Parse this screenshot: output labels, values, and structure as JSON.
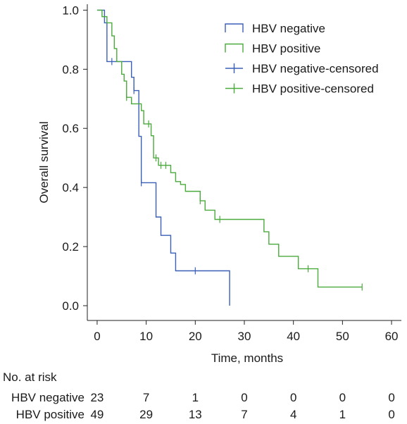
{
  "chart_data": {
    "type": "line",
    "step": true,
    "xlabel": "Time, months",
    "ylabel": "Overall survival",
    "xlim": [
      -2,
      62
    ],
    "ylim": [
      -0.05,
      1.02
    ],
    "x_ticks": [
      "0",
      "10",
      "20",
      "30",
      "40",
      "50",
      "60"
    ],
    "y_ticks": [
      "0.0",
      "0.2",
      "0.4",
      "0.6",
      "0.8",
      "1.0"
    ],
    "legend_position": "top-right",
    "legend": [
      "HBV negative",
      "HBV positive",
      "HBV negative-censored",
      "HBV positive-censored"
    ],
    "series": [
      {
        "name": "HBV negative",
        "color": "#3a5fb7",
        "points": [
          [
            0,
            1.0
          ],
          [
            1.5,
            0.957
          ],
          [
            2,
            0.826
          ],
          [
            7,
            0.773
          ],
          [
            7.5,
            0.728
          ],
          [
            8.5,
            0.573
          ],
          [
            9,
            0.416
          ],
          [
            12,
            0.3
          ],
          [
            13,
            0.238
          ],
          [
            15,
            0.178
          ],
          [
            16,
            0.118
          ],
          [
            27,
            0.0
          ]
        ],
        "end": 27,
        "censored": [
          [
            3,
            0.826
          ],
          [
            7.5,
            0.728
          ],
          [
            9,
            0.416
          ],
          [
            20,
            0.118
          ]
        ]
      },
      {
        "name": "HBV positive",
        "color": "#4aaa3c",
        "points": [
          [
            0,
            1.0
          ],
          [
            1,
            0.978
          ],
          [
            2,
            0.957
          ],
          [
            3,
            0.913
          ],
          [
            3.5,
            0.87
          ],
          [
            4,
            0.826
          ],
          [
            5,
            0.783
          ],
          [
            5.5,
            0.76
          ],
          [
            6,
            0.705
          ],
          [
            7,
            0.683
          ],
          [
            9,
            0.66
          ],
          [
            9.5,
            0.615
          ],
          [
            11,
            0.575
          ],
          [
            11.5,
            0.5
          ],
          [
            12.5,
            0.475
          ],
          [
            15,
            0.45
          ],
          [
            16,
            0.42
          ],
          [
            17,
            0.41
          ],
          [
            18,
            0.387
          ],
          [
            21,
            0.355
          ],
          [
            22,
            0.323
          ],
          [
            24,
            0.292
          ],
          [
            34,
            0.25
          ],
          [
            35,
            0.208
          ],
          [
            37,
            0.167
          ],
          [
            41,
            0.125
          ],
          [
            45,
            0.063
          ]
        ],
        "end": 54,
        "censored": [
          [
            6,
            0.705
          ],
          [
            10.5,
            0.615
          ],
          [
            12,
            0.5
          ],
          [
            13,
            0.475
          ],
          [
            14,
            0.475
          ],
          [
            21,
            0.355
          ],
          [
            25,
            0.292
          ],
          [
            43,
            0.125
          ],
          [
            54,
            0.063
          ]
        ]
      }
    ],
    "at_risk": {
      "title": "No. at risk",
      "times": [
        0,
        10,
        20,
        30,
        40,
        50,
        60
      ],
      "rows": [
        {
          "label": "HBV negative",
          "values": [
            "23",
            "7",
            "1",
            "0",
            "0",
            "0",
            "0"
          ]
        },
        {
          "label": "HBV positive",
          "values": [
            "49",
            "29",
            "13",
            "7",
            "4",
            "1",
            "0"
          ]
        }
      ]
    }
  }
}
